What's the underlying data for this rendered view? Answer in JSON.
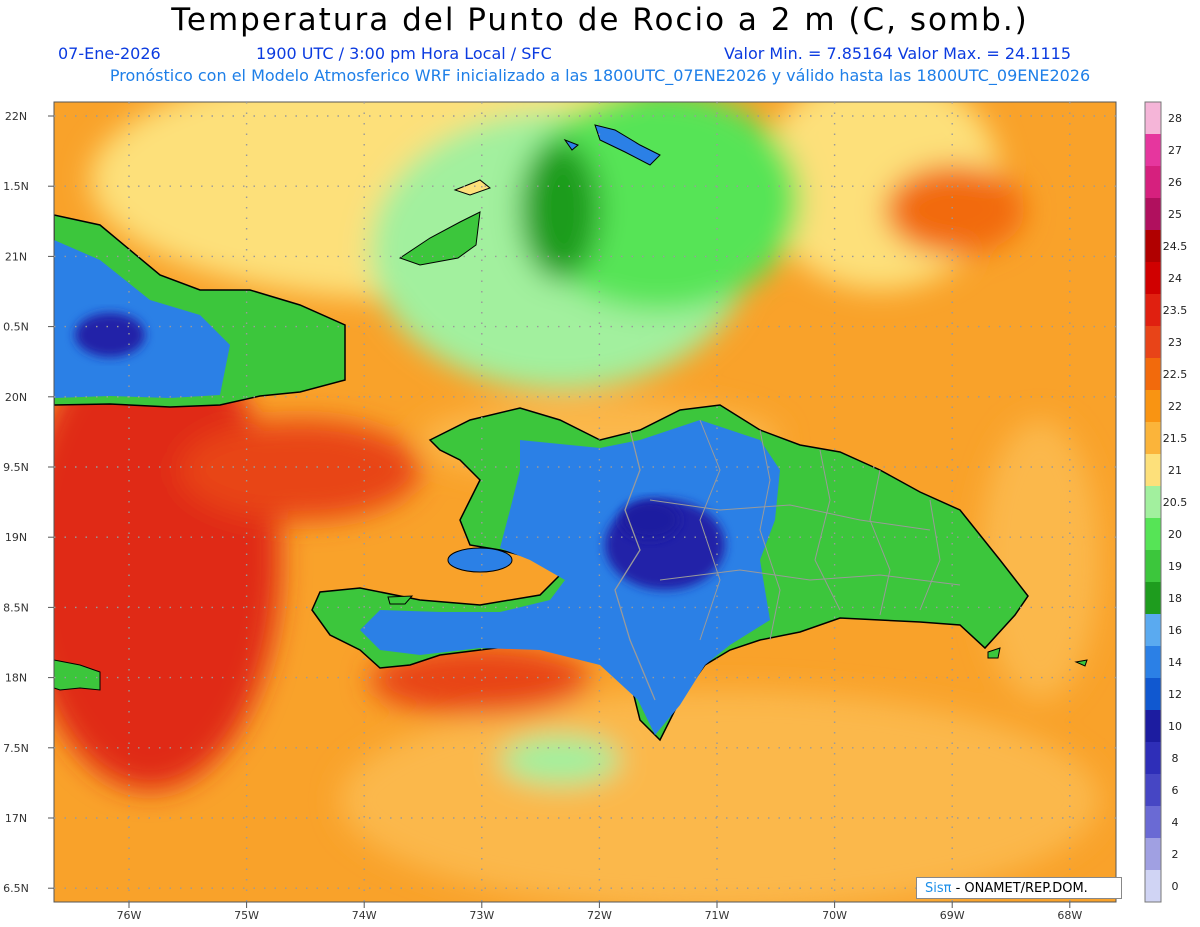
{
  "title": "Temperatura del Punto de Rocio a 2 m (C, somb.)",
  "header": {
    "date": "07-Ene-2026",
    "time": "1900 UTC / 3:00 pm Hora Local / SFC",
    "min_max": "Valor Min. = 7.85164  Valor Max. = 24.1115",
    "description": "Pronóstico con el Modelo Atmosferico WRF inicializado a las 1800UTC_07ENE2026 y válido hasta las  1800UTC_09ENE2026"
  },
  "axes": {
    "lat_labels": [
      "22N",
      "1.5N",
      "21N",
      "0.5N",
      "20N",
      "9.5N",
      "19N",
      "8.5N",
      "18N",
      "7.5N",
      "17N",
      "6.5N"
    ],
    "lon_labels": [
      "76W",
      "75W",
      "74W",
      "73W",
      "72W",
      "71W",
      "70W",
      "69W",
      "68W"
    ]
  },
  "colorbar": {
    "labels": [
      "28",
      "27",
      "26",
      "25",
      "24.5",
      "24",
      "23.5",
      "23",
      "22.5",
      "22",
      "21.5",
      "21",
      "20.5",
      "20",
      "19",
      "18",
      "16",
      "14",
      "12",
      "10",
      "8",
      "6",
      "4",
      "2",
      "0"
    ],
    "colors": [
      "#f5b5d8",
      "#e6369e",
      "#d6207e",
      "#b0105e",
      "#b00000",
      "#d00000",
      "#e02010",
      "#e84418",
      "#f26a0c",
      "#f99412",
      "#fbb43a",
      "#fde07a",
      "#a2f09e",
      "#56e456",
      "#3cc63c",
      "#1e9c1e",
      "#5aaaf0",
      "#2b80e6",
      "#1058d0",
      "#1c1ca0",
      "#2e2eb8",
      "#4646c4",
      "#6a6ad4",
      "#a0a0e2",
      "#d0d4f4"
    ]
  },
  "credit": {
    "brand": "Sisπ",
    "text": " - ONAMET/REP.DOM."
  },
  "colors": {
    "ocean_base": "#f9a22a",
    "ocean_warm": "#fbb84c",
    "ocean_hot": "#e02a18",
    "land_green": "#3cc63c",
    "land_blue": "#2b80e6",
    "land_dark": "#2020a8",
    "border": "#9a9a9a",
    "grid": "#9a9a9a"
  }
}
